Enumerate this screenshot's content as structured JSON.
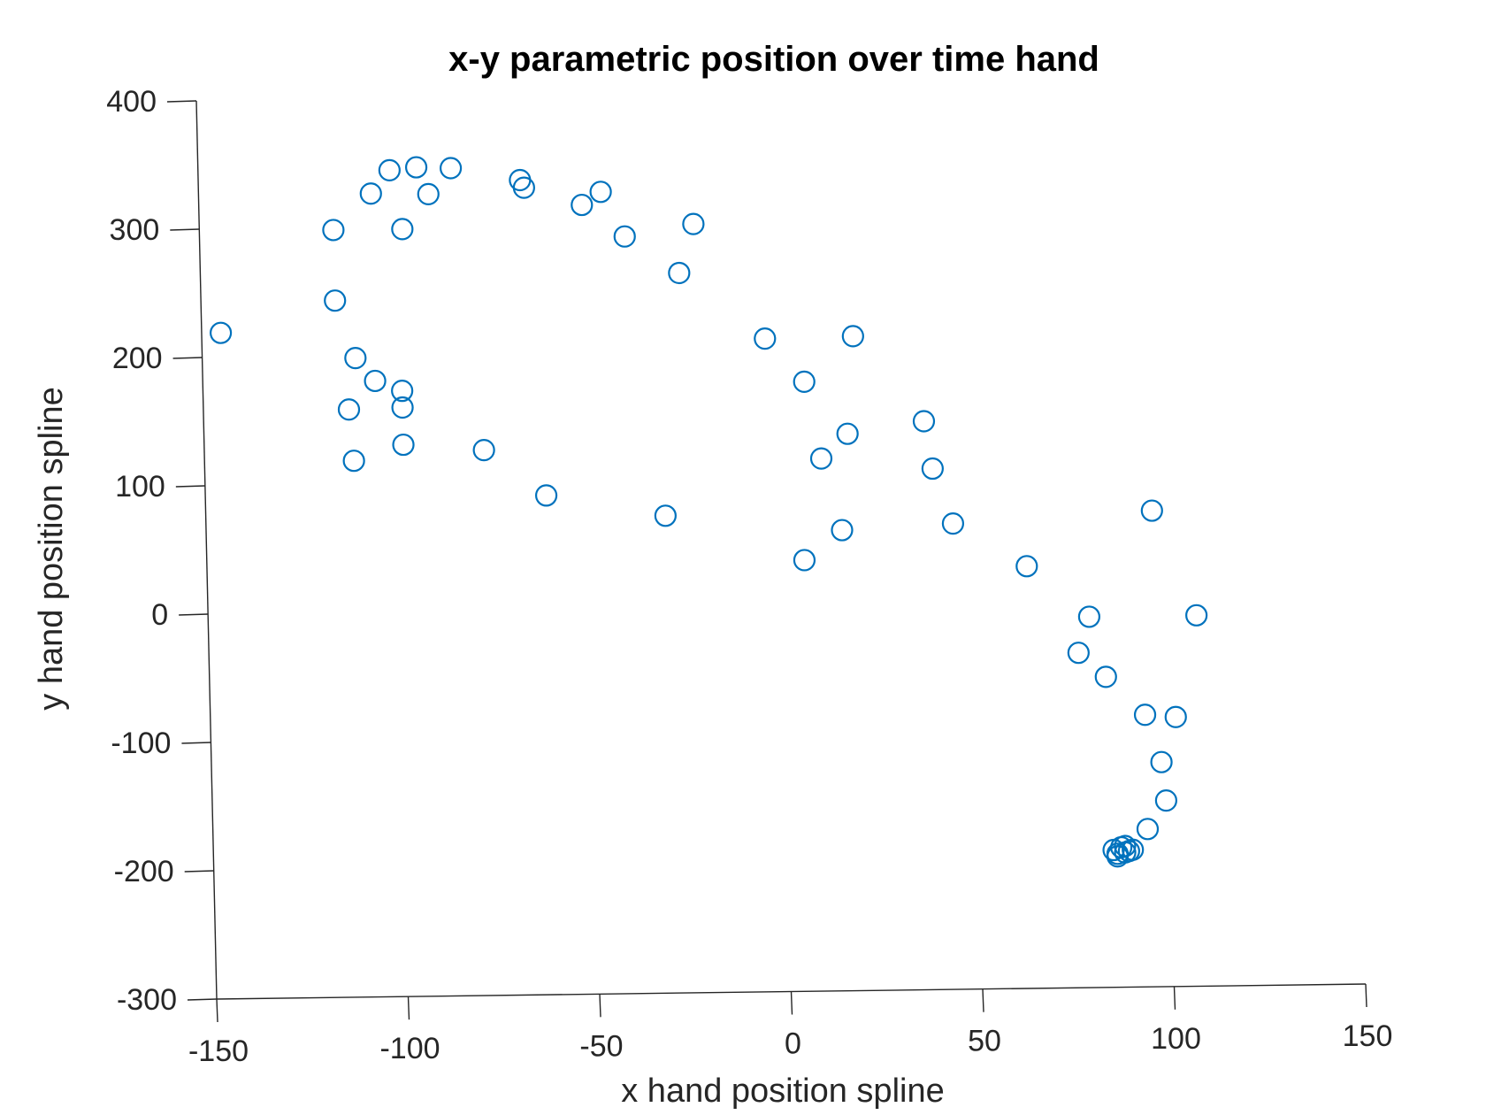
{
  "chart_data": {
    "type": "scatter",
    "title": "x-y parametric position over time hand",
    "xlabel": "x hand position spline",
    "ylabel": "y hand position spline",
    "xlim": [
      -150,
      150
    ],
    "ylim": [
      -300,
      400
    ],
    "xticks": [
      "-150",
      "-100",
      "-50",
      "0",
      "50",
      "100",
      "150"
    ],
    "yticks": [
      "400",
      "300",
      "200",
      "100",
      "0",
      "-100",
      "-200",
      "-300"
    ],
    "grid": false,
    "marker": "circle-open",
    "color": "#0072BD",
    "series": [
      {
        "points": [
          [
            -145,
            219
          ],
          [
            -115,
            298
          ],
          [
            -115,
            243
          ],
          [
            -110,
            198
          ],
          [
            -112,
            158
          ],
          [
            -111,
            118
          ],
          [
            -105,
            326
          ],
          [
            -105,
            180
          ],
          [
            -100,
            344
          ],
          [
            -97,
            298
          ],
          [
            -98,
            172
          ],
          [
            -98,
            159
          ],
          [
            -98,
            130
          ],
          [
            -93,
            346
          ],
          [
            -90,
            325
          ],
          [
            -84,
            345
          ],
          [
            -77,
            125
          ],
          [
            -66,
            335
          ],
          [
            -65,
            329
          ],
          [
            -61,
            89
          ],
          [
            -50,
            315
          ],
          [
            -45,
            325
          ],
          [
            -39,
            290
          ],
          [
            -30,
            72
          ],
          [
            -25,
            261
          ],
          [
            -21,
            299
          ],
          [
            -3,
            209
          ],
          [
            6,
            36
          ],
          [
            7,
            175
          ],
          [
            11,
            115
          ],
          [
            16,
            59
          ],
          [
            18,
            134
          ],
          [
            20,
            210
          ],
          [
            38,
            143
          ],
          [
            40,
            106
          ],
          [
            45,
            63
          ],
          [
            64,
            29
          ],
          [
            77,
            -39
          ],
          [
            80,
            -11
          ],
          [
            84,
            -58
          ],
          [
            94,
            -88
          ],
          [
            97,
            71
          ],
          [
            98,
            -125
          ],
          [
            99,
            -155
          ],
          [
            102,
            -90
          ],
          [
            108,
            -11
          ],
          [
            94,
            -177
          ],
          [
            85,
            -193
          ],
          [
            86,
            -196
          ],
          [
            87,
            -191
          ],
          [
            88,
            -190
          ],
          [
            89,
            -194
          ],
          [
            90,
            -193
          ],
          [
            86,
            -198
          ],
          [
            88,
            -195
          ]
        ]
      }
    ]
  }
}
